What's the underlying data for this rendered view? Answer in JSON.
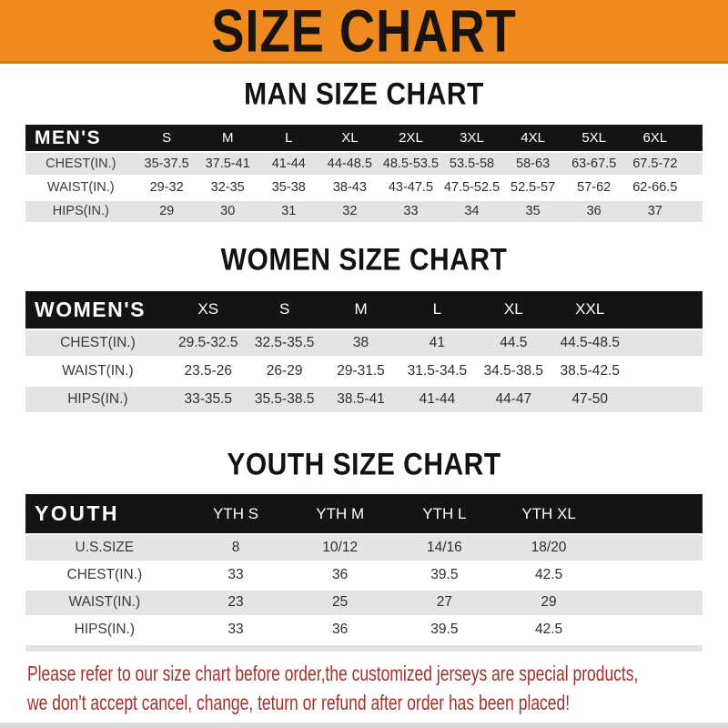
{
  "colors": {
    "banner_orange": "#EE8A1E",
    "banner_border": "#D1770F",
    "header_black": "#141414",
    "row_gray": "#E4E4E4",
    "note_red": "#A5312A"
  },
  "banner": {
    "title": "SIZE CHART"
  },
  "sections": [
    {
      "title": "MAN SIZE CHART",
      "table": {
        "corner_label": "MEN'S",
        "columns": [
          "S",
          "M",
          "L",
          "XL",
          "2XL",
          "3XL",
          "4XL",
          "5XL",
          "6XL"
        ],
        "rows": [
          {
            "label": "CHEST(IN.)",
            "values": [
              "35-37.5",
              "37.5-41",
              "41-44",
              "44-48.5",
              "48.5-53.5",
              "53.5-58",
              "58-63",
              "63-67.5",
              "67.5-72"
            ]
          },
          {
            "label": "WAIST(IN.)",
            "values": [
              "29-32",
              "32-35",
              "35-38",
              "38-43",
              "43-47.5",
              "47.5-52.5",
              "52.5-57",
              "57-62",
              "62-66.5"
            ]
          },
          {
            "label": "HIPS(IN.)",
            "values": [
              "29",
              "30",
              "31",
              "32",
              "33",
              "34",
              "35",
              "36",
              "37"
            ]
          }
        ]
      }
    },
    {
      "title": "WOMEN SIZE CHART",
      "table": {
        "corner_label": "WOMEN'S",
        "columns": [
          "XS",
          "S",
          "M",
          "L",
          "XL",
          "XXL"
        ],
        "rows": [
          {
            "label": "CHEST(IN.)",
            "values": [
              "29.5-32.5",
              "32.5-35.5",
              "38",
              "41",
              "44.5",
              "44.5-48.5"
            ]
          },
          {
            "label": "WAIST(IN.)",
            "values": [
              "23.5-26",
              "26-29",
              "29-31.5",
              "31.5-34.5",
              "34.5-38.5",
              "38.5-42.5"
            ]
          },
          {
            "label": "HIPS(IN.)",
            "values": [
              "33-35.5",
              "35.5-38.5",
              "38.5-41",
              "41-44",
              "44-47",
              "47-50"
            ]
          }
        ]
      }
    },
    {
      "title": "YOUTH SIZE CHART",
      "table": {
        "corner_label": "YOUTH",
        "columns": [
          "YTH S",
          "YTH M",
          "YTH L",
          "YTH XL"
        ],
        "rows": [
          {
            "label": "U.S.SIZE",
            "values": [
              "8",
              "10/12",
              "14/16",
              "18/20"
            ]
          },
          {
            "label": "CHEST(IN.)",
            "values": [
              "33",
              "36",
              "39.5",
              "42.5"
            ]
          },
          {
            "label": "WAIST(IN.)",
            "values": [
              "23",
              "25",
              "27",
              "29"
            ]
          },
          {
            "label": "HIPS(IN.)",
            "values": [
              "33",
              "36",
              "39.5",
              "42.5"
            ]
          }
        ]
      }
    }
  ],
  "footer": {
    "line1": "Please refer to our size chart before order,the customized jerseys are special products,",
    "line2": "we don't accept cancel, change, teturn or refund after order has been placed!"
  }
}
